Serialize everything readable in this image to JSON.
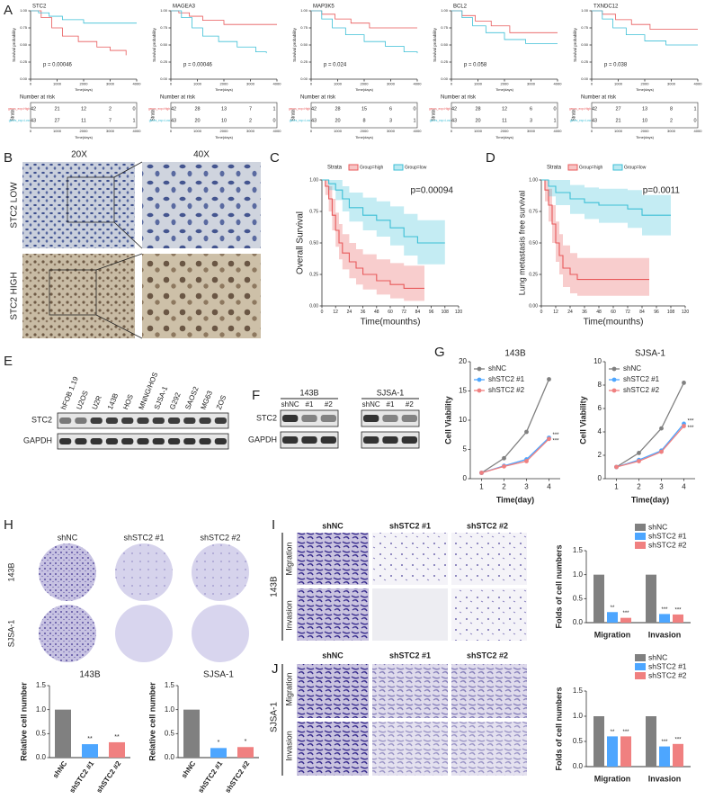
{
  "labels": [
    "A",
    "B",
    "C",
    "D",
    "E",
    "F",
    "G",
    "H",
    "I",
    "J"
  ],
  "a": {
    "axes": {
      "ylabel": "Survival probability",
      "xlabel": "Time(days)",
      "xlim": [
        0,
        4000
      ],
      "xticks": [
        0,
        1000,
        2000,
        3000,
        4000
      ],
      "ylim": [
        0,
        1
      ],
      "yticks": [
        {
          "value": 0,
          "label": "0.00"
        },
        0.25,
        {
          "value": 0.5,
          "label": "0.50"
        },
        0.75,
        {
          "value": 1,
          "label": "1.00"
        }
      ],
      "risk_title": "Number at risk",
      "strata": "Strata",
      "strata_labels": [
        "genes_exp=High",
        "genes_exp=Low"
      ]
    },
    "plots": [
      {
        "title": "STC2",
        "p": "p = 0.00046",
        "series": [
          {
            "color": "#e8595a",
            "x": [
              0,
              400,
              800,
              1200,
              1800,
              2500,
              3000,
              3600
            ],
            "values": [
              1,
              0.9,
              0.75,
              0.63,
              0.55,
              0.47,
              0.42,
              0.35
            ]
          },
          {
            "color": "#3dbfd6",
            "x": [
              0,
              300,
              700,
              1200,
              2000,
              4000
            ],
            "values": [
              1,
              0.97,
              0.92,
              0.87,
              0.82,
              0.82
            ]
          }
        ],
        "risk": [
          [
            "42",
            "21",
            "12",
            "2",
            "0"
          ],
          [
            "43",
            "27",
            "11",
            "7",
            "1"
          ]
        ]
      },
      {
        "title": "MAGEA3",
        "p": "p = 0.00046",
        "series": [
          {
            "color": "#e8595a",
            "x": [
              0,
              300,
              700,
              1200,
              2000,
              4000
            ],
            "values": [
              1,
              0.97,
              0.92,
              0.86,
              0.8,
              0.8
            ]
          },
          {
            "color": "#3dbfd6",
            "x": [
              0,
              400,
              800,
              1200,
              1800,
              2500,
              3200,
              3600
            ],
            "values": [
              1,
              0.9,
              0.75,
              0.63,
              0.55,
              0.47,
              0.4,
              0.38
            ]
          }
        ],
        "risk": [
          [
            "42",
            "28",
            "13",
            "7",
            "1"
          ],
          [
            "43",
            "20",
            "10",
            "2",
            "0"
          ]
        ]
      },
      {
        "title": "MAP3K5",
        "p": "p = 0.024",
        "series": [
          {
            "color": "#e8595a",
            "x": [
              0,
              400,
              900,
              1500,
              2200,
              4000
            ],
            "values": [
              1,
              0.95,
              0.88,
              0.82,
              0.75,
              0.75
            ]
          },
          {
            "color": "#3dbfd6",
            "x": [
              0,
              400,
              800,
              1300,
              2000,
              2800,
              3500,
              4000
            ],
            "values": [
              1,
              0.88,
              0.75,
              0.65,
              0.55,
              0.48,
              0.4,
              0.38
            ]
          }
        ],
        "risk": [
          [
            "42",
            "28",
            "15",
            "6",
            "0"
          ],
          [
            "43",
            "20",
            "8",
            "3",
            "1"
          ]
        ]
      },
      {
        "title": "BCL2",
        "p": "p = 0.058",
        "series": [
          {
            "color": "#e8595a",
            "x": [
              0,
              400,
              900,
              1500,
              2200,
              4000
            ],
            "values": [
              1,
              0.93,
              0.85,
              0.78,
              0.68,
              0.68
            ]
          },
          {
            "color": "#3dbfd6",
            "x": [
              0,
              400,
              800,
              1300,
              2000,
              2800,
              4000
            ],
            "values": [
              1,
              0.9,
              0.78,
              0.68,
              0.58,
              0.52,
              0.52
            ]
          }
        ],
        "risk": [
          [
            "42",
            "28",
            "12",
            "6",
            "0"
          ],
          [
            "43",
            "20",
            "11",
            "3",
            "1"
          ]
        ]
      },
      {
        "title": "TXNDC12",
        "p": "p = 0.038",
        "series": [
          {
            "color": "#e8595a",
            "x": [
              0,
              400,
              900,
              1500,
              2200,
              4000
            ],
            "values": [
              1,
              0.95,
              0.87,
              0.8,
              0.73,
              0.73
            ]
          },
          {
            "color": "#3dbfd6",
            "x": [
              0,
              400,
              800,
              1300,
              2000,
              2800,
              4000
            ],
            "values": [
              1,
              0.88,
              0.75,
              0.65,
              0.56,
              0.5,
              0.5
            ]
          }
        ],
        "risk": [
          [
            "42",
            "27",
            "13",
            "8",
            "1"
          ],
          [
            "43",
            "21",
            "10",
            "2",
            "0"
          ]
        ]
      }
    ]
  },
  "b": {
    "columns": [
      "20X",
      "40X"
    ],
    "rows": [
      "STC2 LOW",
      "STC2 HIGH"
    ]
  },
  "km_axes": {
    "xlabel": "Time(mounths)",
    "xlim": [
      0,
      120
    ],
    "xticks": [
      0,
      12,
      24,
      36,
      48,
      60,
      72,
      84,
      96,
      108,
      120
    ],
    "ylim": [
      0,
      1
    ],
    "yticks": [
      {
        "value": 0,
        "label": "0.00"
      },
      0.25,
      {
        "value": 0.5,
        "label": "0.50"
      },
      0.75,
      {
        "value": 1,
        "label": "1.00"
      }
    ],
    "strata": "Strata"
  },
  "c": {
    "ylabel": "Overall Survival",
    "p": "p=0.00094",
    "series": [
      {
        "name": "Group=high",
        "color": "#e8595a",
        "x": [
          0,
          3,
          6,
          9,
          12,
          15,
          18,
          24,
          30,
          36,
          48,
          60,
          72,
          84,
          90
        ],
        "values": [
          1,
          0.95,
          0.85,
          0.72,
          0.6,
          0.5,
          0.42,
          0.35,
          0.3,
          0.25,
          0.2,
          0.17,
          0.14,
          0.14,
          0.14
        ],
        "lower": [
          1,
          0.88,
          0.75,
          0.6,
          0.47,
          0.37,
          0.29,
          0.22,
          0.17,
          0.13,
          0.09,
          0.06,
          0.04,
          0.04,
          0.04
        ],
        "upper": [
          1,
          1,
          0.95,
          0.85,
          0.74,
          0.65,
          0.57,
          0.5,
          0.45,
          0.41,
          0.37,
          0.34,
          0.32,
          0.32,
          0.32
        ]
      },
      {
        "name": "Group=low",
        "color": "#3dbfd6",
        "x": [
          0,
          6,
          12,
          18,
          24,
          36,
          48,
          60,
          72,
          84,
          96,
          108
        ],
        "values": [
          1,
          0.97,
          0.92,
          0.85,
          0.78,
          0.72,
          0.68,
          0.62,
          0.55,
          0.5,
          0.5,
          0.5
        ],
        "lower": [
          1,
          0.92,
          0.84,
          0.75,
          0.67,
          0.6,
          0.55,
          0.48,
          0.4,
          0.33,
          0.33,
          0.33
        ],
        "upper": [
          1,
          1,
          1,
          0.95,
          0.9,
          0.86,
          0.83,
          0.79,
          0.73,
          0.68,
          0.68,
          0.68
        ]
      }
    ]
  },
  "d": {
    "ylabel": "Lung metastasis free survival",
    "p": "p=0.0011",
    "series": [
      {
        "name": "Group=high",
        "color": "#e8595a",
        "x": [
          0,
          3,
          6,
          9,
          12,
          15,
          18,
          24,
          30,
          48,
          72,
          90
        ],
        "values": [
          1,
          0.92,
          0.8,
          0.65,
          0.5,
          0.4,
          0.3,
          0.25,
          0.21,
          0.21,
          0.21,
          0.21
        ],
        "lower": [
          1,
          0.83,
          0.67,
          0.5,
          0.35,
          0.25,
          0.15,
          0.1,
          0.08,
          0.08,
          0.08,
          0.08
        ],
        "upper": [
          1,
          1,
          0.93,
          0.8,
          0.67,
          0.57,
          0.48,
          0.42,
          0.38,
          0.38,
          0.38,
          0.38
        ]
      },
      {
        "name": "Group=low",
        "color": "#3dbfd6",
        "x": [
          0,
          6,
          12,
          24,
          36,
          48,
          60,
          72,
          84,
          96,
          108
        ],
        "values": [
          1,
          0.95,
          0.9,
          0.85,
          0.82,
          0.8,
          0.8,
          0.77,
          0.72,
          0.72,
          0.72
        ],
        "lower": [
          1,
          0.87,
          0.8,
          0.73,
          0.69,
          0.66,
          0.66,
          0.62,
          0.56,
          0.56,
          0.56
        ],
        "upper": [
          1,
          1,
          1,
          0.96,
          0.94,
          0.93,
          0.93,
          0.92,
          0.88,
          0.88,
          0.88
        ]
      }
    ]
  },
  "e": {
    "lanes": [
      "hFOB 1.19",
      "U2OS",
      "U2R",
      "143B",
      "HOS",
      "MNNG/HOS",
      "SJSA-1",
      "G292",
      "SAOS2",
      "MG63",
      "ZOS"
    ],
    "rows": [
      "STC2",
      "GAPDH"
    ]
  },
  "f": {
    "groups": [
      "143B",
      "SJSA-1"
    ],
    "lanes": [
      "shNC",
      "#1",
      "#2"
    ],
    "rows": [
      "STC2",
      "GAPDH"
    ]
  },
  "g": {
    "ylabel": "Cell Viability",
    "xlabel": "Time(day)",
    "x": [
      1,
      2,
      3,
      4
    ],
    "xlim": [
      0.5,
      4.5
    ],
    "xticks": [
      1,
      2,
      3,
      4
    ],
    "plots": [
      {
        "title": "143B",
        "ylim": [
          0,
          20
        ],
        "yticks": [
          0,
          5,
          10,
          15,
          20
        ],
        "annotations": [
          "***",
          "***"
        ],
        "series": [
          {
            "name": "shNC",
            "color": "#808080",
            "values": [
              1,
              3.5,
              8,
              17
            ]
          },
          {
            "name": "shSTC2 #1",
            "color": "#4da6ff",
            "values": [
              1,
              2.2,
              3.3,
              7
            ]
          },
          {
            "name": "shSTC2 #2",
            "color": "#f08080",
            "values": [
              1,
              2.1,
              3,
              6.8
            ]
          }
        ]
      },
      {
        "title": "SJSA-1",
        "ylim": [
          0,
          10
        ],
        "yticks": [
          0,
          2,
          4,
          6,
          8,
          10
        ],
        "annotations": [
          "***",
          "***"
        ],
        "series": [
          {
            "name": "shNC",
            "color": "#808080",
            "values": [
              1,
              2.2,
              4.3,
              8.2
            ]
          },
          {
            "name": "shSTC2 #1",
            "color": "#4da6ff",
            "values": [
              1,
              1.6,
              2.4,
              4.7
            ]
          },
          {
            "name": "shSTC2 #2",
            "color": "#f08080",
            "values": [
              1,
              1.5,
              2.3,
              4.5
            ]
          }
        ]
      }
    ]
  },
  "h": {
    "columns": [
      "shNC",
      "shSTC2 #1",
      "shSTC2 #2"
    ],
    "rows": [
      "143B",
      "SJSA-1"
    ],
    "ylabel": "Relative cell number",
    "categories": [
      "shNC",
      "shSTC2 #1",
      "shSTC2 #2"
    ],
    "colors": [
      "#808080",
      "#4da6ff",
      "#f08080"
    ],
    "ylim": [
      0,
      1.5
    ],
    "yticks": [
      {
        "value": 0,
        "label": "0.0"
      },
      0.5,
      {
        "value": 1,
        "label": "1.0"
      },
      1.5
    ],
    "charts": [
      {
        "title": "143B",
        "values": [
          1,
          0.28,
          0.32
        ],
        "stars": [
          null,
          "**",
          "**"
        ]
      },
      {
        "title": "SJSA-1",
        "values": [
          1,
          0.2,
          0.22
        ],
        "stars": [
          null,
          "*",
          "*"
        ]
      }
    ]
  },
  "i": {
    "columns": [
      "shNC",
      "shSTC2 #1",
      "shSTC2 #2"
    ],
    "rows": [
      "Migration",
      "Invasion"
    ],
    "cell_line": "143B",
    "ylabel": "Folds of cell numbers",
    "categories": [
      "Migration",
      "Invasion"
    ],
    "ylim": [
      0,
      1.5
    ],
    "yticks": [
      {
        "value": 0,
        "label": "0.0"
      },
      0.5,
      {
        "value": 1,
        "label": "1.0"
      },
      1.5
    ],
    "series": [
      {
        "name": "shNC",
        "color": "#808080",
        "values": [
          1,
          1
        ],
        "stars": [
          null,
          null
        ]
      },
      {
        "name": "shSTC2 #1",
        "color": "#4da6ff",
        "values": [
          0.22,
          0.18
        ],
        "stars": [
          "**",
          "***"
        ]
      },
      {
        "name": "shSTC2 #2",
        "color": "#f08080",
        "values": [
          0.1,
          0.17
        ],
        "stars": [
          "***",
          "***"
        ]
      }
    ]
  },
  "j": {
    "columns": [
      "shNC",
      "shSTC2 #1",
      "shSTC2 #2"
    ],
    "rows": [
      "Migration",
      "Invasion"
    ],
    "cell_line": "SJSA-1",
    "ylabel": "Folds of cell numbers",
    "categories": [
      "Migration",
      "Invasion"
    ],
    "ylim": [
      0,
      1.5
    ],
    "yticks": [
      {
        "value": 0,
        "label": "0.0"
      },
      0.5,
      {
        "value": 1,
        "label": "1.0"
      },
      1.5
    ],
    "series": [
      {
        "name": "shNC",
        "color": "#808080",
        "values": [
          1,
          1
        ],
        "stars": [
          null,
          null
        ]
      },
      {
        "name": "shSTC2 #1",
        "color": "#4da6ff",
        "values": [
          0.6,
          0.4
        ],
        "stars": [
          "**",
          "***"
        ]
      },
      {
        "name": "shSTC2 #2",
        "color": "#f08080",
        "values": [
          0.6,
          0.45
        ],
        "stars": [
          "***",
          "***"
        ]
      }
    ]
  }
}
